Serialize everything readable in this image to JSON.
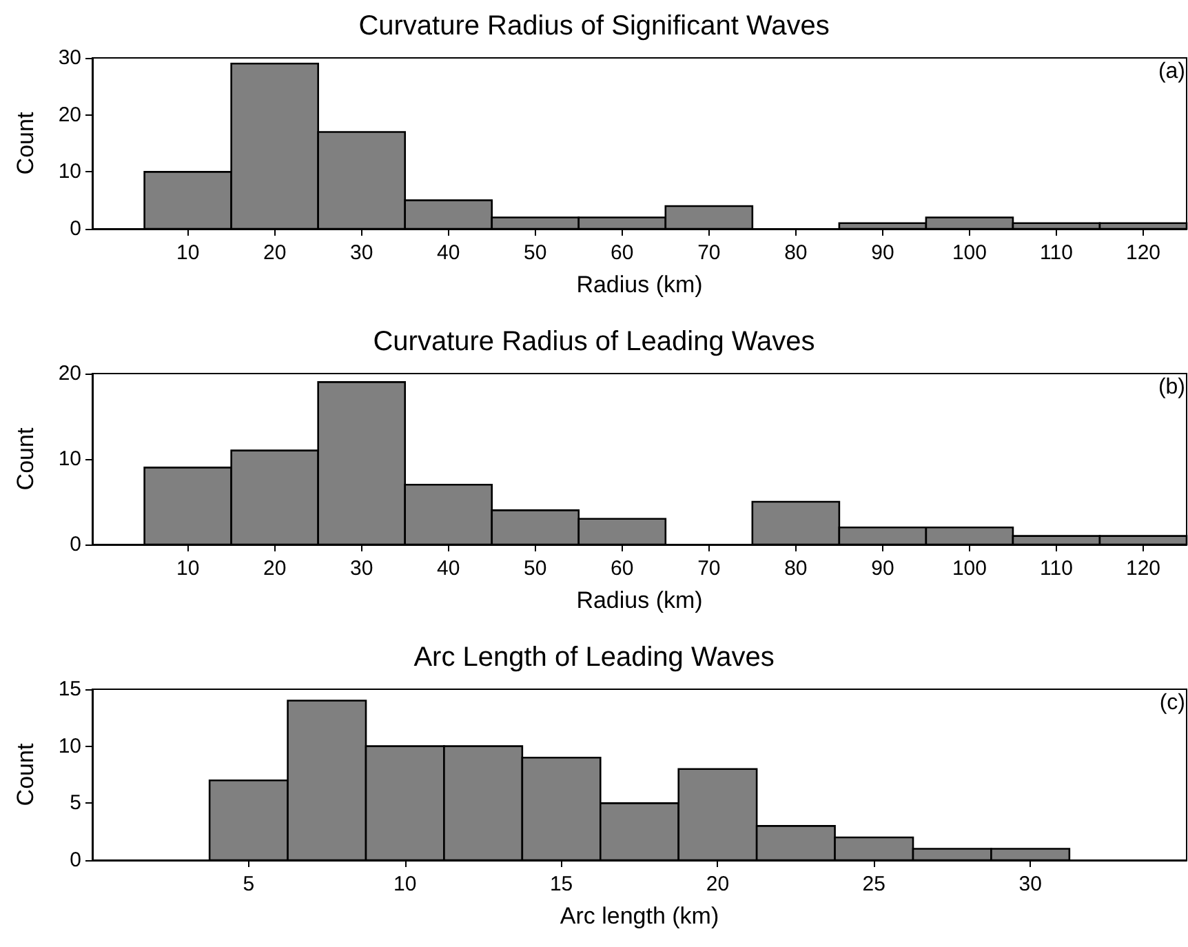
{
  "chart_data": [
    {
      "type": "histogram",
      "title": "Curvature Radius of Significant Waves",
      "xlabel": "Radius (km)",
      "ylabel": "Count",
      "annotations": [
        "(a)"
      ],
      "color": "#808080",
      "bins": [
        5,
        15,
        25,
        35,
        45,
        55,
        65,
        75,
        85,
        95,
        105,
        115,
        125
      ],
      "values": [
        10,
        29,
        17,
        5,
        2,
        2,
        4,
        0,
        1,
        2,
        1,
        1
      ],
      "xlim": [
        -1,
        125
      ],
      "xticks": [
        10,
        20,
        30,
        40,
        50,
        60,
        70,
        80,
        90,
        100,
        110,
        120
      ],
      "ylim": [
        0,
        30
      ],
      "yticks": [
        0,
        10,
        20,
        30
      ]
    },
    {
      "type": "histogram",
      "title": "Curvature Radius of Leading Waves",
      "xlabel": "Radius (km)",
      "ylabel": "Count",
      "annotations": [
        "(b)"
      ],
      "color": "#808080",
      "bins": [
        5,
        15,
        25,
        35,
        45,
        55,
        65,
        75,
        85,
        95,
        105,
        115,
        125
      ],
      "values": [
        9,
        11,
        19,
        7,
        4,
        3,
        0,
        5,
        2,
        2,
        1,
        1
      ],
      "xlim": [
        -1,
        125
      ],
      "xticks": [
        10,
        20,
        30,
        40,
        50,
        60,
        70,
        80,
        90,
        100,
        110,
        120
      ],
      "ylim": [
        0,
        20
      ],
      "yticks": [
        0,
        10,
        20
      ]
    },
    {
      "type": "histogram",
      "title": "Arc Length of Leading Waves",
      "xlabel": "Arc length (km)",
      "ylabel": "Count",
      "annotations": [
        "(c)"
      ],
      "color": "#808080",
      "bins": [
        3.75,
        6.25,
        8.75,
        11.25,
        13.75,
        16.25,
        18.75,
        21.25,
        23.75,
        26.25,
        28.75,
        31.25
      ],
      "values": [
        7,
        14,
        10,
        10,
        9,
        5,
        8,
        3,
        2,
        1,
        1
      ],
      "xlim": [
        0,
        35
      ],
      "xticks": [
        5,
        10,
        15,
        20,
        25,
        30
      ],
      "ylim": [
        0,
        15
      ],
      "yticks": [
        0,
        5,
        10,
        15
      ]
    }
  ]
}
